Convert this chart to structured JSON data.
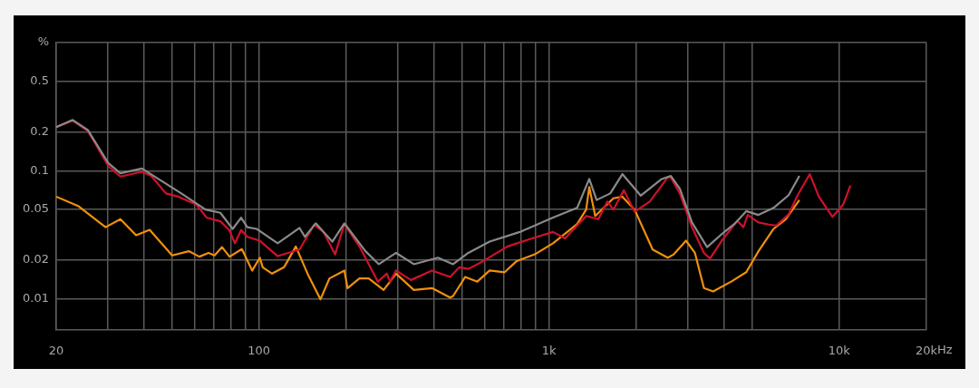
{
  "chart_data": {
    "type": "line",
    "log": "xy",
    "grid": true,
    "marker": "none",
    "line_style": "solid",
    "xlim": [
      20,
      20000
    ],
    "ylim": [
      0.0057,
      1
    ],
    "xticks": [
      20,
      {
        "value": 30,
        "label": null
      },
      {
        "value": 40,
        "label": null
      },
      {
        "value": 50,
        "label": null
      },
      {
        "value": 60,
        "label": null
      },
      {
        "value": 70,
        "label": null
      },
      {
        "value": 80,
        "label": null
      },
      {
        "value": 90,
        "label": null
      },
      100,
      {
        "value": 200,
        "label": null
      },
      {
        "value": 300,
        "label": null
      },
      {
        "value": 400,
        "label": null
      },
      {
        "value": 500,
        "label": null
      },
      {
        "value": 600,
        "label": null
      },
      {
        "value": 700,
        "label": null
      },
      {
        "value": 800,
        "label": null
      },
      {
        "value": 900,
        "label": null
      },
      {
        "value": 1000,
        "label": "1k"
      },
      {
        "value": 2000,
        "label": null
      },
      {
        "value": 3000,
        "label": null
      },
      {
        "value": 4000,
        "label": null
      },
      {
        "value": 5000,
        "label": null
      },
      {
        "value": 10000,
        "label": "10k"
      },
      {
        "value": 20000,
        "label": "20k"
      }
    ],
    "xlabel": "Hz",
    "yticks": [
      {
        "value": 1,
        "label": "%"
      },
      0.5,
      0.2,
      0.1,
      0.05,
      0.02,
      0.01
    ],
    "series": [
      {
        "color": "#8a8a8a",
        "x": [
          20,
          22.8,
          25.7,
          30.3,
          33.3,
          39.5,
          54,
          65.4,
          73.6,
          81.2,
          86.8,
          91.2,
          98.2,
          116,
          138,
          144,
          157,
          179,
          197,
          233,
          259,
          297,
          342,
          414,
          467,
          527,
          624,
          793,
          1032,
          1250,
          1376,
          1459,
          1626,
          1790,
          2070,
          2447,
          2630,
          2825,
          3111,
          3508,
          3954,
          4351,
          4786,
          5272,
          5943,
          6700,
          7196,
          7294
        ],
        "values": [
          0.219,
          0.249,
          0.208,
          0.114,
          0.0955,
          0.104,
          0.0664,
          0.0497,
          0.0469,
          0.0351,
          0.043,
          0.0362,
          0.0351,
          0.0271,
          0.0357,
          0.0304,
          0.0388,
          0.0279,
          0.0388,
          0.0235,
          0.0186,
          0.0228,
          0.0186,
          0.0209,
          0.0186,
          0.0228,
          0.0279,
          0.0332,
          0.043,
          0.0512,
          0.0861,
          0.059,
          0.0664,
          0.094,
          0.0638,
          0.0861,
          0.091,
          0.0723,
          0.0394,
          0.0253,
          0.0322,
          0.0383,
          0.0483,
          0.0451,
          0.0512,
          0.0644,
          0.0861,
          0.091
        ]
      },
      {
        "color": "#d0112b",
        "x": [
          20,
          22.8,
          25.7,
          30.3,
          33.3,
          39.5,
          42.5,
          47.8,
          52.7,
          60.9,
          66,
          73.6,
          79,
          82.6,
          86.8,
          91.2,
          100.7,
          103,
          116,
          138,
          155,
          167,
          183,
          197,
          222,
          257,
          276,
          283,
          297,
          334,
          395,
          456,
          491,
          527,
          594,
          719,
          873,
          1032,
          1135,
          1343,
          1479,
          1589,
          1667,
          1811,
          1972,
          2224,
          2566,
          2630,
          2825,
          3111,
          3420,
          3590,
          3954,
          4456,
          4677,
          4842,
          5272,
          5728,
          6083,
          6700,
          7196,
          7926,
          8512,
          9486,
          10320,
          10940
        ],
        "values": [
          0.219,
          0.246,
          0.205,
          0.108,
          0.09,
          0.098,
          0.091,
          0.0664,
          0.0627,
          0.0542,
          0.043,
          0.0402,
          0.0344,
          0.0271,
          0.0344,
          0.0304,
          0.0284,
          0.0271,
          0.0215,
          0.0242,
          0.0379,
          0.0332,
          0.0222,
          0.0383,
          0.0256,
          0.0136,
          0.0157,
          0.0136,
          0.0166,
          0.014,
          0.0166,
          0.0148,
          0.0176,
          0.0171,
          0.0197,
          0.0256,
          0.0296,
          0.0332,
          0.0296,
          0.0443,
          0.0418,
          0.0574,
          0.0497,
          0.0703,
          0.0478,
          0.0574,
          0.0886,
          0.0886,
          0.0664,
          0.0362,
          0.0228,
          0.0206,
          0.0287,
          0.0406,
          0.0362,
          0.0451,
          0.0394,
          0.0379,
          0.0373,
          0.0456,
          0.0644,
          0.094,
          0.0627,
          0.0436,
          0.0542,
          0.0766
        ]
      },
      {
        "color": "#f0900c",
        "x": [
          20,
          23.9,
          29.6,
          33.3,
          37.7,
          42,
          50.2,
          57.3,
          62.3,
          67,
          70.3,
          74.6,
          79.2,
          87.3,
          94.8,
          100.7,
          103,
          111,
          122,
          134,
          148,
          163,
          175,
          197,
          202,
          222,
          239,
          269,
          297,
          342,
          395,
          456,
          467,
          514,
          566,
          624,
          703,
          774,
          893,
          1032,
          1250,
          1343,
          1376,
          1443,
          1667,
          1790,
          1972,
          2276,
          2566,
          2692,
          2966,
          3184,
          3420,
          3680,
          4246,
          4786,
          5272,
          5943,
          6546,
          7294
        ],
        "values": [
          0.0627,
          0.0527,
          0.0362,
          0.0418,
          0.0313,
          0.0345,
          0.0218,
          0.0235,
          0.0213,
          0.0228,
          0.0218,
          0.0253,
          0.0213,
          0.0244,
          0.0166,
          0.0209,
          0.0176,
          0.0157,
          0.0176,
          0.0256,
          0.0152,
          0.0099,
          0.0144,
          0.0166,
          0.0121,
          0.0144,
          0.0144,
          0.0117,
          0.0157,
          0.0117,
          0.0121,
          0.0102,
          0.0105,
          0.0148,
          0.0136,
          0.0166,
          0.0161,
          0.0197,
          0.0222,
          0.0271,
          0.0383,
          0.0497,
          0.0745,
          0.0443,
          0.0608,
          0.0627,
          0.0497,
          0.0242,
          0.0209,
          0.0222,
          0.0284,
          0.0228,
          0.0121,
          0.0114,
          0.0136,
          0.0161,
          0.0235,
          0.0351,
          0.0418,
          0.059
        ]
      }
    ]
  }
}
